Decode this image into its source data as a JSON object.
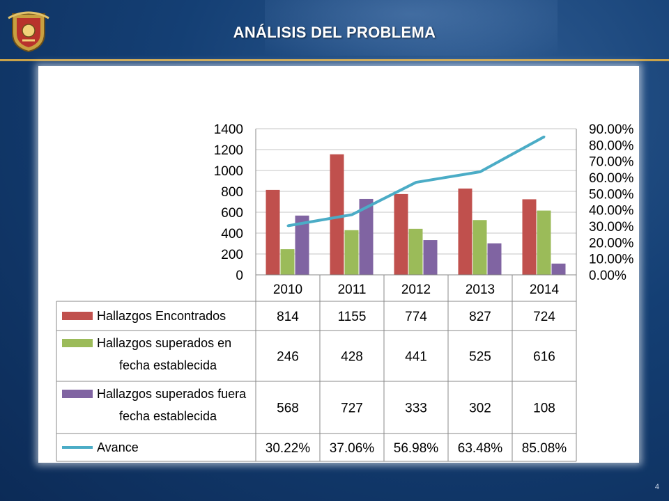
{
  "header": {
    "title": "ANÁLISIS DEL PROBLEMA"
  },
  "footer": {
    "page_number": "4"
  },
  "colors": {
    "encontrados": "#c0504d",
    "en_fecha": "#9bbb59",
    "fuera_fecha": "#8064a2",
    "avance": "#4bacc6",
    "accent_line": "#c9a24a"
  },
  "chart_data": {
    "type": "bar",
    "title": "",
    "xlabel": "",
    "ylabel": "",
    "categories": [
      "2010",
      "2011",
      "2012",
      "2013",
      "2014"
    ],
    "ylim": [
      0,
      1400
    ],
    "y_ticks": [
      "1400",
      "1200",
      "1000",
      "800",
      "600",
      "400",
      "200",
      "0"
    ],
    "y2lim": [
      0,
      0.9
    ],
    "y2_ticks": [
      "90.00%",
      "80.00%",
      "70.00%",
      "60.00%",
      "50.00%",
      "40.00%",
      "30.00%",
      "20.00%",
      "10.00%",
      "0.00%"
    ],
    "series": [
      {
        "name": "Hallazgos Encontrados",
        "type": "bar",
        "values": [
          814,
          1155,
          774,
          827,
          724
        ],
        "labels": [
          "814",
          "1155",
          "774",
          "827",
          "724"
        ]
      },
      {
        "name": "Hallazgos superados en fecha establecida",
        "type": "bar",
        "values": [
          246,
          428,
          441,
          525,
          616
        ],
        "labels": [
          "246",
          "428",
          "441",
          "525",
          "616"
        ]
      },
      {
        "name": "Hallazgos superados fuera fecha establecida",
        "type": "bar",
        "values": [
          568,
          727,
          333,
          302,
          108
        ],
        "labels": [
          "568",
          "727",
          "333",
          "302",
          "108"
        ]
      },
      {
        "name": "Avance",
        "type": "line",
        "axis": "secondary",
        "values": [
          0.3022,
          0.3706,
          0.5698,
          0.6348,
          0.8508
        ],
        "labels": [
          "30.22%",
          "37.06%",
          "56.98%",
          "63.48%",
          "85.08%"
        ]
      }
    ],
    "legend_rows": [
      [
        "Hallazgos Encontrados"
      ],
      [
        "Hallazgos superados en",
        "fecha establecida"
      ],
      [
        "Hallazgos superados fuera",
        "fecha establecida"
      ],
      [
        "Avance"
      ]
    ],
    "legend_placement": "data-table"
  }
}
